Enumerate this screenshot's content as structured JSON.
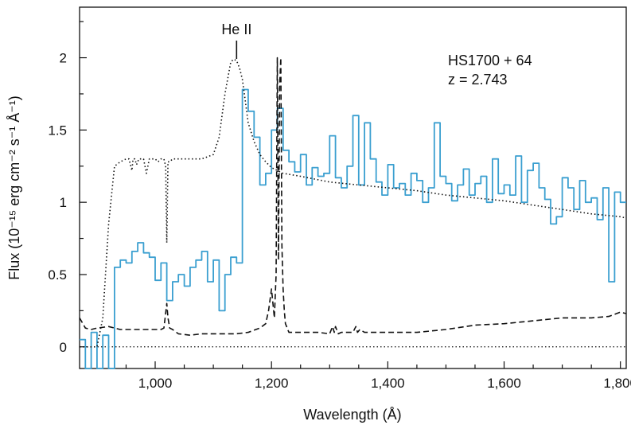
{
  "chart_data": {
    "type": "line",
    "title": "",
    "xlabel": "Wavelength (Å)",
    "ylabel": "Flux (10⁻¹⁵ erg cm⁻² s⁻¹ Å⁻¹)",
    "xlim": [
      870,
      1810
    ],
    "ylim": [
      -0.15,
      2.35
    ],
    "x_ticks": [
      1000,
      1200,
      1400,
      1600,
      1800
    ],
    "x_tick_labels": [
      "1,000",
      "1,200",
      "1,400",
      "1,600",
      "1,800"
    ],
    "y_ticks": [
      0,
      0.5,
      1,
      1.5,
      2
    ],
    "y_tick_labels": [
      "0",
      "0.5",
      "1",
      "1.5",
      "2"
    ],
    "grid": false,
    "zero_line": true,
    "annotations": {
      "line_id": "He II",
      "line_id_x": 1140,
      "object": "HS1700 + 64",
      "redshift": "z = 2.743"
    },
    "series": [
      {
        "style": "step",
        "color": "#3a9fd0",
        "x": [
          870,
          880,
          890,
          900,
          910,
          920,
          930,
          940,
          950,
          960,
          970,
          980,
          990,
          1000,
          1010,
          1020,
          1030,
          1040,
          1050,
          1060,
          1070,
          1080,
          1090,
          1100,
          1110,
          1120,
          1130,
          1140,
          1150,
          1160,
          1170,
          1180,
          1190,
          1200,
          1210,
          1220,
          1230,
          1240,
          1250,
          1260,
          1270,
          1280,
          1290,
          1300,
          1310,
          1320,
          1330,
          1340,
          1350,
          1360,
          1370,
          1380,
          1390,
          1400,
          1410,
          1420,
          1430,
          1440,
          1450,
          1460,
          1470,
          1480,
          1490,
          1500,
          1510,
          1520,
          1530,
          1540,
          1550,
          1560,
          1570,
          1580,
          1590,
          1600,
          1610,
          1620,
          1630,
          1640,
          1650,
          1660,
          1670,
          1680,
          1690,
          1700,
          1710,
          1720,
          1730,
          1740,
          1750,
          1760,
          1770,
          1780,
          1790,
          1800
        ],
        "y": [
          0.05,
          -0.15,
          0.1,
          -0.15,
          0.08,
          -0.15,
          0.55,
          0.6,
          0.58,
          0.66,
          0.72,
          0.65,
          0.62,
          0.46,
          0.58,
          0.32,
          0.45,
          0.5,
          0.42,
          0.55,
          0.6,
          0.66,
          0.45,
          0.6,
          0.25,
          0.5,
          0.62,
          0.58,
          1.78,
          1.63,
          1.45,
          1.12,
          1.2,
          1.5,
          1.65,
          1.36,
          1.28,
          1.21,
          1.33,
          1.12,
          1.24,
          1.18,
          1.2,
          1.46,
          1.17,
          1.1,
          1.25,
          1.6,
          1.12,
          1.55,
          1.3,
          1.14,
          1.05,
          1.26,
          1.1,
          1.13,
          1.05,
          1.2,
          1.15,
          1.0,
          1.1,
          1.55,
          1.18,
          1.13,
          1.01,
          1.12,
          1.23,
          1.05,
          1.13,
          1.18,
          1.0,
          1.3,
          1.06,
          1.12,
          1.05,
          1.32,
          1.0,
          1.22,
          1.27,
          1.1,
          1.02,
          0.85,
          0.9,
          1.17,
          1.1,
          0.95,
          1.15,
          1.0,
          1.03,
          0.88,
          1.1,
          0.45,
          1.07,
          1.0
        ]
      },
      {
        "style": "dotted",
        "color": "#111111",
        "x": [
          870,
          900,
          910,
          920,
          930,
          940,
          950,
          955,
          960,
          962,
          965,
          968,
          972,
          980,
          985,
          990,
          995,
          1000,
          1005,
          1010,
          1015,
          1018,
          1020,
          1022,
          1025,
          1030,
          1040,
          1060,
          1080,
          1100,
          1110,
          1120,
          1130,
          1135,
          1140,
          1145,
          1150,
          1155,
          1160,
          1170,
          1180,
          1190,
          1200,
          1220,
          1250,
          1300,
          1350,
          1400,
          1450,
          1500,
          1550,
          1600,
          1650,
          1700,
          1750,
          1800,
          1810
        ],
        "y": [
          0.0,
          0.0,
          0.2,
          0.85,
          1.25,
          1.28,
          1.3,
          1.3,
          1.22,
          1.3,
          1.3,
          1.26,
          1.3,
          1.3,
          1.2,
          1.3,
          1.3,
          1.3,
          1.28,
          1.3,
          1.3,
          1.25,
          0.72,
          1.28,
          1.28,
          1.3,
          1.3,
          1.3,
          1.3,
          1.33,
          1.45,
          1.75,
          1.97,
          1.99,
          1.98,
          1.93,
          1.85,
          1.7,
          1.55,
          1.42,
          1.33,
          1.28,
          1.24,
          1.2,
          1.18,
          1.14,
          1.12,
          1.1,
          1.08,
          1.05,
          1.03,
          1.01,
          0.98,
          0.95,
          0.92,
          0.9,
          0.89
        ]
      },
      {
        "style": "dashed",
        "color": "#111111",
        "x": [
          870,
          880,
          890,
          900,
          920,
          940,
          960,
          980,
          1000,
          1010,
          1015,
          1020,
          1022,
          1025,
          1030,
          1040,
          1060,
          1080,
          1100,
          1120,
          1140,
          1160,
          1180,
          1190,
          1195,
          1200,
          1205,
          1208,
          1210,
          1212,
          1214,
          1216,
          1218,
          1220,
          1222,
          1224,
          1226,
          1228,
          1230,
          1240,
          1260,
          1280,
          1300,
          1305,
          1308,
          1310,
          1315,
          1320,
          1340,
          1345,
          1348,
          1352,
          1360,
          1380,
          1400,
          1450,
          1500,
          1550,
          1600,
          1650,
          1700,
          1750,
          1780,
          1800,
          1810
        ],
        "y": [
          0.2,
          0.13,
          0.12,
          0.13,
          0.14,
          0.12,
          0.12,
          0.12,
          0.12,
          0.12,
          0.13,
          0.3,
          0.2,
          0.13,
          0.12,
          0.09,
          0.08,
          0.09,
          0.09,
          0.09,
          0.09,
          0.1,
          0.13,
          0.16,
          0.25,
          0.4,
          0.2,
          0.5,
          2.0,
          0.6,
          1.8,
          2.0,
          0.7,
          0.4,
          0.25,
          0.16,
          0.14,
          0.12,
          0.1,
          0.1,
          0.1,
          0.1,
          0.09,
          0.14,
          0.1,
          0.14,
          0.09,
          0.1,
          0.1,
          0.14,
          0.1,
          0.12,
          0.1,
          0.1,
          0.1,
          0.1,
          0.12,
          0.15,
          0.16,
          0.18,
          0.2,
          0.2,
          0.21,
          0.24,
          0.23
        ]
      }
    ]
  }
}
